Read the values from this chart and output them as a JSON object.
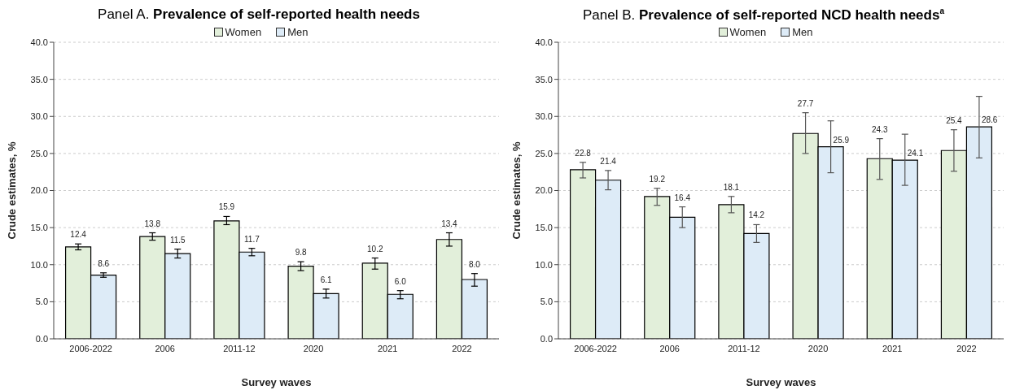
{
  "chart_data": [
    {
      "type": "bar",
      "title": "Panel A. Prevalence of self-reported health needs",
      "xlabel": "Survey waves",
      "ylabel": "Crude estimates, %",
      "categories": [
        "2006-2022",
        "2006",
        "2011-12",
        "2020",
        "2021",
        "2022"
      ],
      "series": [
        {
          "name": "Women",
          "color": "#e2efda",
          "values": [
            12.4,
            13.8,
            15.9,
            9.8,
            10.2,
            13.4
          ],
          "value_labels": [
            "12.4",
            "13.8",
            "15.9",
            "9.8",
            "10.2",
            "13.4"
          ],
          "errors": [
            [
              12.0,
              12.8
            ],
            [
              13.3,
              14.3
            ],
            [
              15.4,
              16.5
            ],
            [
              9.2,
              10.4
            ],
            [
              9.4,
              10.9
            ],
            [
              12.5,
              14.3
            ]
          ]
        },
        {
          "name": "Men",
          "color": "#ddebf7",
          "values": [
            8.6,
            11.5,
            11.7,
            6.1,
            6.0,
            8.0
          ],
          "value_labels": [
            "8.6",
            "11.5",
            "11.7",
            "6.1",
            "6.0",
            "8.0"
          ],
          "errors": [
            [
              8.3,
              8.9
            ],
            [
              10.9,
              12.1
            ],
            [
              11.2,
              12.2
            ],
            [
              5.5,
              6.7
            ],
            [
              5.4,
              6.5
            ],
            [
              7.1,
              8.8
            ]
          ]
        }
      ],
      "ylim": [
        0,
        40
      ],
      "yticks": [
        {
          "value": 0,
          "label": "0.0"
        },
        {
          "value": 5,
          "label": "5.0"
        },
        {
          "value": 10,
          "label": "10.0"
        },
        {
          "value": 15,
          "label": "15.0"
        },
        {
          "value": 20,
          "label": "20.0"
        },
        {
          "value": 25,
          "label": "25.0"
        },
        {
          "value": 30,
          "label": "30.0"
        },
        {
          "value": 35,
          "label": "35.0"
        },
        {
          "value": 40,
          "label": "40.0"
        }
      ],
      "grid": "y",
      "legend": "top"
    },
    {
      "type": "bar",
      "title": "Panel B. Prevalence of self-reported NCD health needs$^{a}$",
      "xlabel": "Survey waves",
      "ylabel": "Crude estimates, %",
      "categories": [
        "2006-2022",
        "2006",
        "2011-12",
        "2020",
        "2021",
        "2022"
      ],
      "series": [
        {
          "name": "Women",
          "color": "#e2efda",
          "values": [
            22.8,
            19.2,
            18.1,
            27.7,
            24.3,
            25.4
          ],
          "value_labels": [
            "22.8",
            "19.2",
            "18.1",
            "27.7",
            "24.3",
            "25.4"
          ],
          "errors": [
            [
              21.7,
              23.8
            ],
            [
              18.0,
              20.3
            ],
            [
              17.0,
              19.2
            ],
            [
              25.0,
              30.5
            ],
            [
              21.5,
              27.0
            ],
            [
              22.6,
              28.2
            ]
          ]
        },
        {
          "name": "Men",
          "color": "#ddebf7",
          "values": [
            21.4,
            16.4,
            14.2,
            25.9,
            24.1,
            28.6
          ],
          "value_labels": [
            "21.4",
            "16.4",
            "14.2",
            "25.9",
            "24.1",
            "28.6"
          ],
          "errors": [
            [
              20.1,
              22.7
            ],
            [
              15.0,
              17.8
            ],
            [
              13.0,
              15.4
            ],
            [
              22.4,
              29.4
            ],
            [
              20.7,
              27.6
            ],
            [
              24.4,
              32.7
            ]
          ]
        }
      ],
      "ylim": [
        0,
        40
      ],
      "yticks": [
        {
          "value": 0,
          "label": "0.0"
        },
        {
          "value": 5,
          "label": "5.0"
        },
        {
          "value": 10,
          "label": "10.0"
        },
        {
          "value": 15,
          "label": "15.0"
        },
        {
          "value": 20,
          "label": "20.0"
        },
        {
          "value": 25,
          "label": "25.0"
        },
        {
          "value": 30,
          "label": "30.0"
        },
        {
          "value": 35,
          "label": "35.0"
        },
        {
          "value": 40,
          "label": "40.0"
        }
      ],
      "grid": "y",
      "legend": "top"
    }
  ]
}
